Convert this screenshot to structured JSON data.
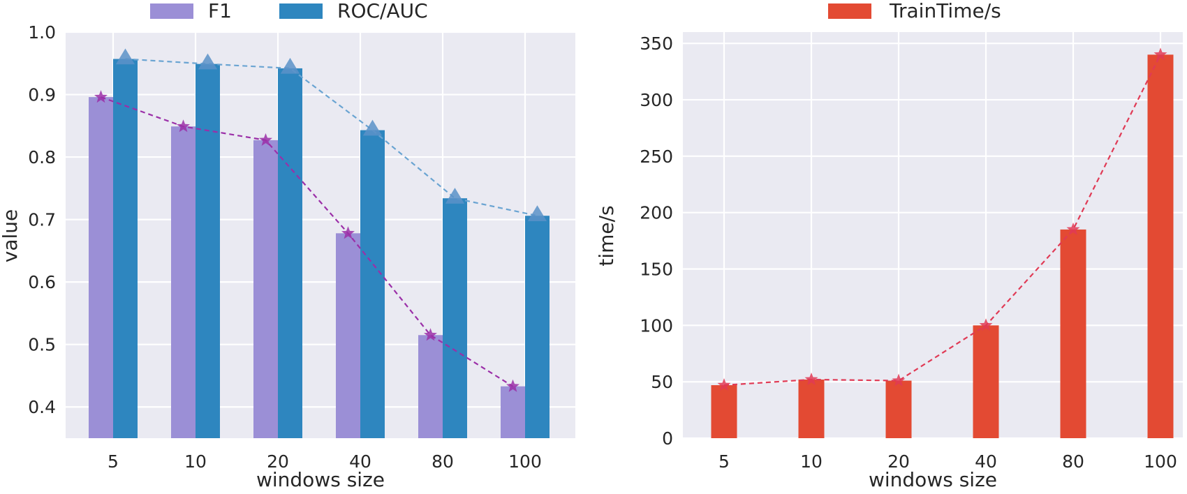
{
  "chart_data": [
    {
      "type": "bar",
      "id": "left",
      "title": "",
      "xlabel": "windows size",
      "ylabel": "value",
      "ylim": [
        0.35,
        1.0
      ],
      "yticks": [
        0.4,
        0.5,
        0.6,
        0.7,
        0.8,
        0.9,
        1.0
      ],
      "ytick_labels": [
        "0.4",
        "0.5",
        "0.6",
        "0.7",
        "0.8",
        "0.9",
        "1.0"
      ],
      "categories": [
        "5",
        "10",
        "20",
        "40",
        "80",
        "100"
      ],
      "grid": true,
      "legend_position": "top-center",
      "series": [
        {
          "name": "F1",
          "color": "#9b8fd6",
          "line_color": "#9b2fa8",
          "marker": "star",
          "values": [
            0.896,
            0.849,
            0.827,
            0.678,
            0.515,
            0.433
          ]
        },
        {
          "name": "ROC/AUC",
          "color": "#2e86bf",
          "line_color": "#6aa4d2",
          "marker": "triangle",
          "values": [
            0.957,
            0.949,
            0.942,
            0.843,
            0.734,
            0.706
          ]
        }
      ]
    },
    {
      "type": "bar",
      "id": "right",
      "title": "",
      "xlabel": "windows size",
      "ylabel": "time/s",
      "ylim": [
        0,
        360
      ],
      "yticks": [
        0,
        50,
        100,
        150,
        200,
        250,
        300,
        350
      ],
      "ytick_labels": [
        "0",
        "50",
        "100",
        "150",
        "200",
        "250",
        "300",
        "350"
      ],
      "categories": [
        "5",
        "10",
        "20",
        "40",
        "80",
        "100"
      ],
      "grid": true,
      "legend_position": "top-center",
      "series": [
        {
          "name": "TrainTime/s",
          "color": "#e34a33",
          "line_color": "#e03a55",
          "marker": "star",
          "values": [
            47,
            52,
            51,
            100,
            185,
            340
          ]
        }
      ]
    }
  ]
}
